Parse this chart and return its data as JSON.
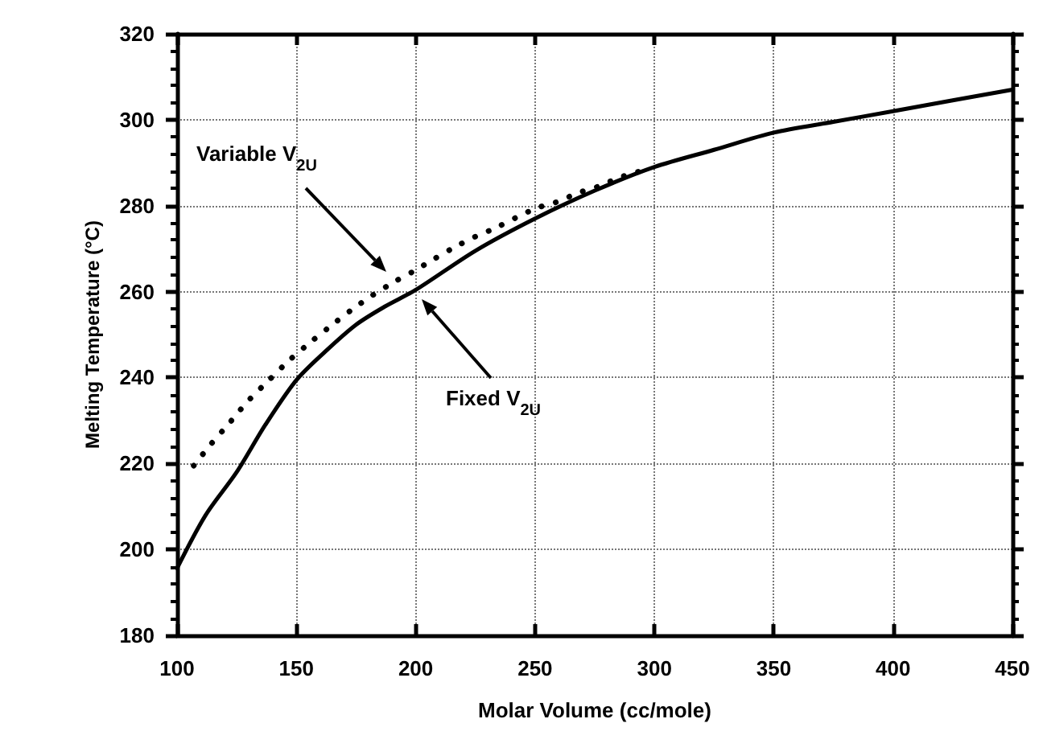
{
  "chart_data": {
    "type": "line",
    "xlabel": "Molar Volume (cc/mole)",
    "ylabel": "Melting Temperature (°C)",
    "xlim": [
      100,
      450
    ],
    "xticks": [
      100,
      150,
      200,
      250,
      300,
      350,
      400,
      450
    ],
    "ylim": [
      180,
      320
    ],
    "yticks": [
      180,
      200,
      220,
      240,
      260,
      280,
      300,
      320
    ],
    "grid": true,
    "marker": "none",
    "series": [
      {
        "color": "#000000",
        "line_style": "solid",
        "x": [
          100,
          112,
          125,
          137,
          150,
          162,
          175,
          187,
          200,
          225,
          250,
          275,
          300,
          325,
          350,
          375,
          400,
          425,
          450
        ],
        "values": [
          195.6,
          208,
          218,
          229,
          239.4,
          246,
          252.3,
          256.5,
          260.4,
          269.5,
          277,
          283.5,
          289,
          293,
          297,
          299.5,
          302,
          304.5,
          307
        ]
      },
      {
        "color": "#000000",
        "line_style": "dotted",
        "x": [
          107,
          114.2,
          121.6,
          129.5,
          138.5,
          146.8,
          155,
          163.7,
          173,
          181.8,
          190.8,
          199,
          207.7,
          216.2,
          225,
          233,
          242,
          250.5,
          259.3,
          268.2,
          277.2,
          285.1,
          294
        ],
        "values": [
          219.5,
          224.5,
          229.2,
          234.4,
          239.4,
          243.9,
          247.8,
          251.7,
          255.7,
          259.1,
          262.2,
          264.7,
          267.6,
          270.3,
          272.8,
          274.7,
          277.2,
          279.4,
          280.9,
          283,
          284.6,
          286.5,
          288
        ]
      }
    ],
    "annotations": [
      "Variable  V$_{2U}$",
      "Fixed  V$_{2U}$"
    ]
  }
}
